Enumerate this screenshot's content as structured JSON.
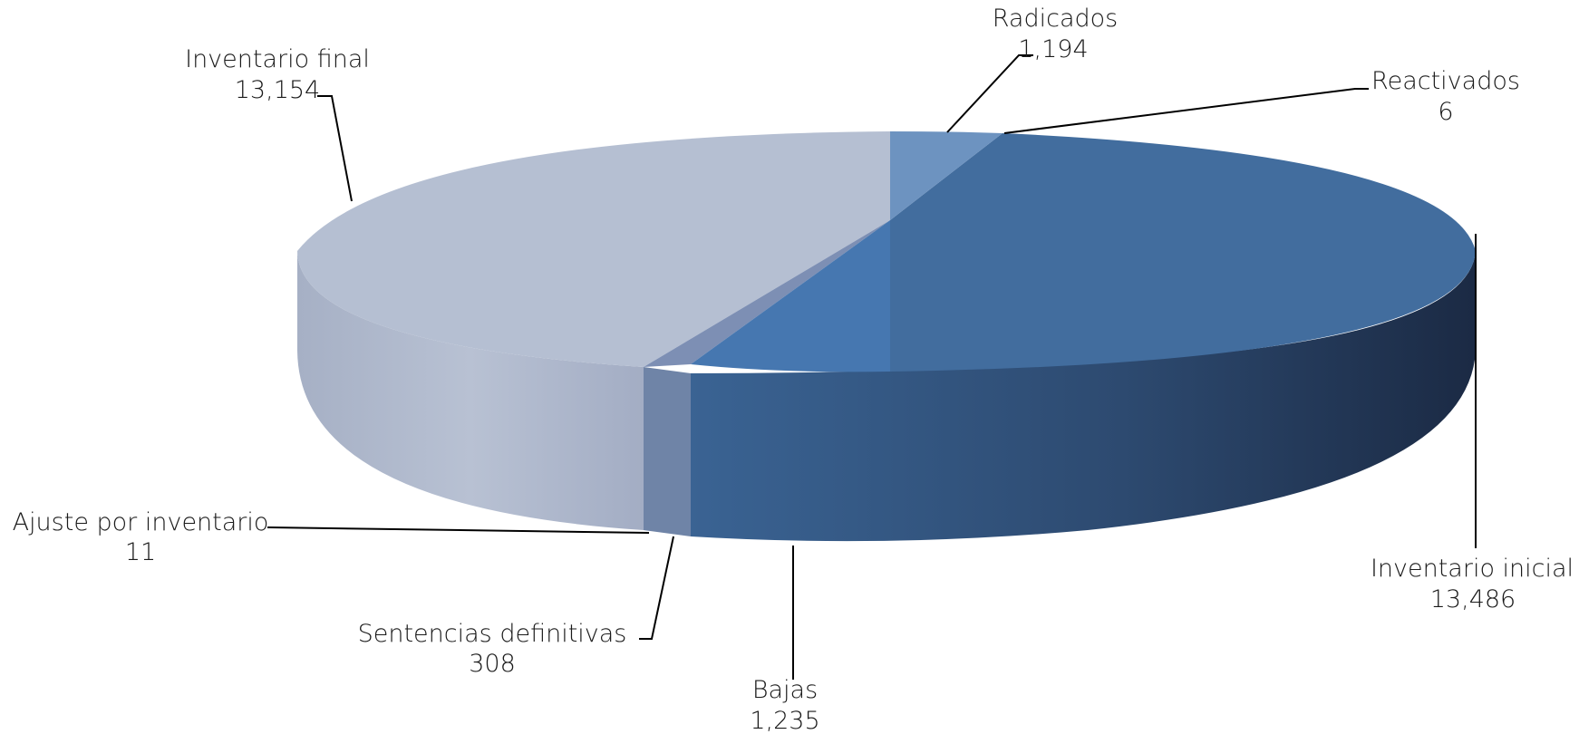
{
  "chart_data": {
    "type": "pie",
    "variant": "3d",
    "title": "",
    "slices": [
      {
        "label": "Inventario inicial",
        "value": 13486,
        "display": "13,486",
        "color": "#426d9e"
      },
      {
        "label": "Radicados",
        "value": 1194,
        "display": "1,194",
        "color": "#6b92bf"
      },
      {
        "label": "Reactivados",
        "value": 6,
        "display": "6",
        "color": "#5b84b5"
      },
      {
        "label": "Inventario final",
        "value": 13154,
        "display": "13,154",
        "color": "#b4bed1"
      },
      {
        "label": "Ajuste por inventario",
        "value": 11,
        "display": "11",
        "color": "#8b98b6"
      },
      {
        "label": "Sentencias definitivas",
        "value": 308,
        "display": "308",
        "color": "#7a8fb4"
      },
      {
        "label": "Bajas",
        "value": 1235,
        "display": "1,235",
        "color": "#4677b0"
      }
    ],
    "legend": "none",
    "data_labels": "outside-with-leaders"
  }
}
